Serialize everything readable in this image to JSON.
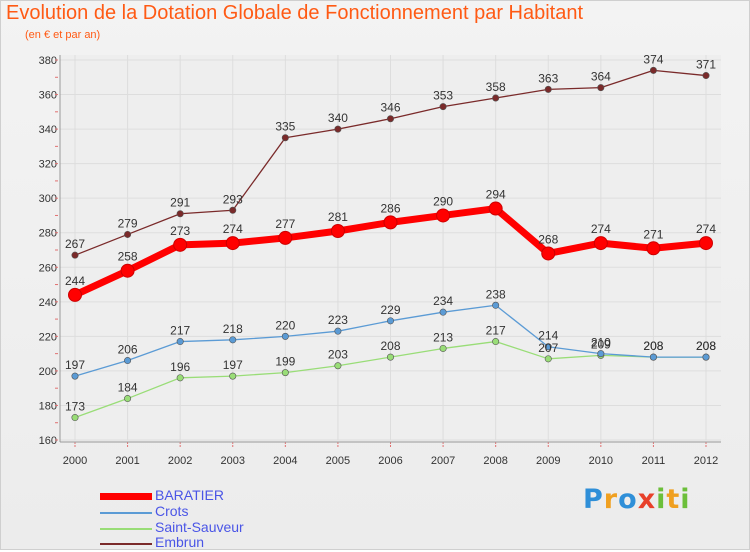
{
  "title": "Evolution de la Dotation Globale de Fonctionnement par Habitant",
  "subtitle": "(en € et par an)",
  "logo_letters": [
    {
      "ch": "P",
      "color": "#2f8fd8"
    },
    {
      "ch": "r",
      "color": "#f0a020"
    },
    {
      "ch": "o",
      "color": "#2f8fd8"
    },
    {
      "ch": "x",
      "color": "#e8402a"
    },
    {
      "ch": "i",
      "color": "#6cbf3a"
    },
    {
      "ch": "t",
      "color": "#f0a020"
    },
    {
      "ch": "i",
      "color": "#6cbf3a"
    }
  ],
  "chart_data": {
    "type": "line",
    "title": "Evolution de la Dotation Globale de Fonctionnement par Habitant",
    "subtitle": "(en € et par an)",
    "x": [
      2000,
      2001,
      2002,
      2003,
      2004,
      2005,
      2006,
      2007,
      2008,
      2009,
      2010,
      2011,
      2012
    ],
    "ylim": [
      160,
      380
    ],
    "yticks": [
      160,
      180,
      200,
      220,
      240,
      260,
      280,
      300,
      320,
      340,
      360,
      380
    ],
    "grid": true,
    "legend_position": "bottom-left",
    "series": [
      {
        "name": "BARATIER",
        "color": "#ff0000",
        "values": [
          244,
          258,
          273,
          274,
          277,
          281,
          286,
          290,
          294,
          268,
          274,
          271,
          274
        ]
      },
      {
        "name": "Crots",
        "color": "#5b9bd5",
        "values": [
          197,
          206,
          217,
          218,
          220,
          223,
          229,
          234,
          238,
          214,
          210,
          208,
          208
        ]
      },
      {
        "name": "Saint-Sauveur",
        "color": "#99dd77",
        "values": [
          173,
          184,
          196,
          197,
          199,
          203,
          208,
          213,
          217,
          207,
          209,
          208,
          208
        ]
      },
      {
        "name": "Embrun",
        "color": "#7a2a2a",
        "values": [
          267,
          279,
          291,
          293,
          335,
          340,
          346,
          353,
          358,
          363,
          364,
          374,
          371
        ]
      }
    ]
  }
}
